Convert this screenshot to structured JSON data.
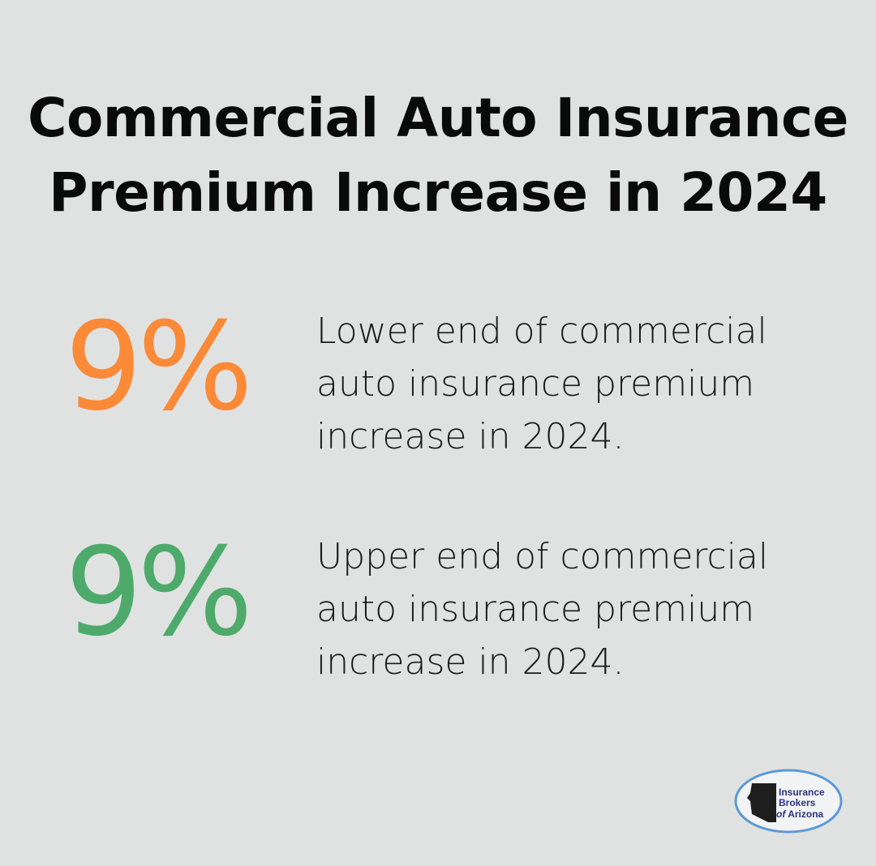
{
  "title": "Commercial Auto Insurance Premium Increase in 2024",
  "stats": [
    {
      "value": "9%",
      "color": "#fb8a38",
      "description": "Lower end of commercial auto insurance premium increase in 2024."
    },
    {
      "value": "9%",
      "color": "#4daa6b",
      "description": "Upper end of commercial auto insurance premium increase in 2024."
    }
  ],
  "logo": {
    "text": "Insurance Brokers of Arizona"
  }
}
